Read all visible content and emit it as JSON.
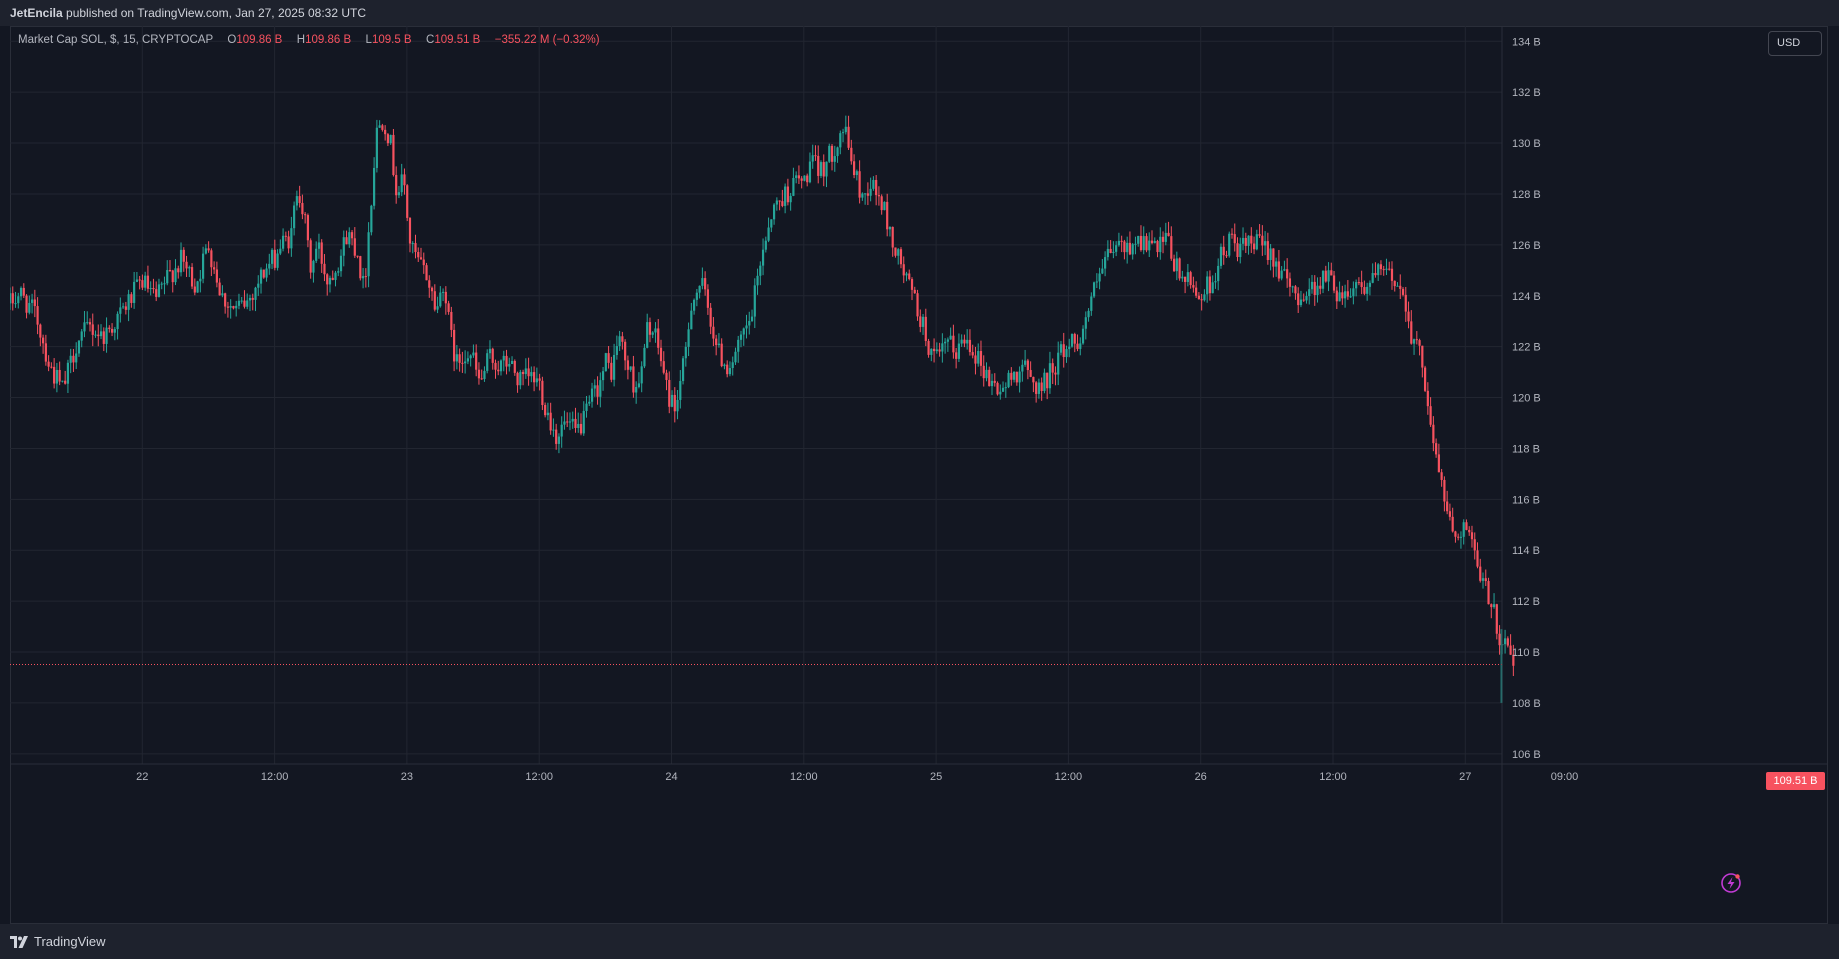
{
  "header": {
    "author": "JetEncila",
    "published_text": " published on TradingView.com, Jan 27, 2025 08:32 UTC"
  },
  "legend": {
    "symbol": "Market Cap SOL, $, 15, CRYPTOCAP",
    "o_label": "O",
    "o_value": "109.86 B",
    "h_label": "H",
    "h_value": "109.86 B",
    "l_label": "L",
    "l_value": "109.5 B",
    "c_label": "C",
    "c_value": "109.51 B",
    "change": "−355.22 M (−0.32%)"
  },
  "currency_button": "USD",
  "last_price_label": "109.51 B",
  "brand": {
    "name": "TradingView",
    "logo": "tradingview-logo-icon"
  },
  "alert": {
    "icon": "lightning-alert-icon"
  },
  "colors": {
    "background": "#131722",
    "grid": "#222631",
    "up": "#26a69a",
    "down": "#f7525f",
    "axis_text": "#b2b5be"
  },
  "chart_data": {
    "type": "candlestick",
    "interval": "15",
    "ylim": [
      105.6,
      134.6
    ],
    "yticks": [
      106,
      108,
      110,
      112,
      114,
      116,
      118,
      120,
      122,
      124,
      126,
      128,
      130,
      132,
      134
    ],
    "ytick_labels": [
      "106 B",
      "108 B",
      "110 B",
      "112 B",
      "114 B",
      "116 B",
      "118 B",
      "120 B",
      "122 B",
      "124 B",
      "126 B",
      "128 B",
      "130 B",
      "132 B",
      "134 B"
    ],
    "xlim": [
      -2.0,
      20.75
    ],
    "xticks": [
      {
        "label": "22",
        "t": 0
      },
      {
        "label": "12:00",
        "t": 2
      },
      {
        "label": "23",
        "t": 4
      },
      {
        "label": "12:00",
        "t": 6
      },
      {
        "label": "24",
        "t": 8
      },
      {
        "label": "12:00",
        "t": 10
      },
      {
        "label": "25",
        "t": 12
      },
      {
        "label": "12:00",
        "t": 14
      },
      {
        "label": "26",
        "t": 16
      },
      {
        "label": "12:00",
        "t": 18
      },
      {
        "label": "27",
        "t": 20
      },
      {
        "label": "09:00",
        "t": 21.5
      }
    ],
    "last_price": 109.51,
    "path": [
      [
        -2.0,
        123.7
      ],
      [
        -1.85,
        124.1
      ],
      [
        -1.6,
        123.2
      ],
      [
        -1.4,
        121.2
      ],
      [
        -1.2,
        120.3
      ],
      [
        -1.0,
        122.1
      ],
      [
        -0.8,
        122.8
      ],
      [
        -0.6,
        122.4
      ],
      [
        -0.4,
        123.0
      ],
      [
        -0.2,
        123.8
      ],
      [
        0.0,
        124.6
      ],
      [
        0.2,
        123.8
      ],
      [
        0.4,
        124.8
      ],
      [
        0.6,
        125.4
      ],
      [
        0.8,
        124.4
      ],
      [
        1.0,
        126.0
      ],
      [
        1.2,
        124.0
      ],
      [
        1.4,
        123.4
      ],
      [
        1.6,
        123.8
      ],
      [
        1.8,
        124.8
      ],
      [
        2.0,
        125.5
      ],
      [
        2.1,
        126.0
      ],
      [
        2.25,
        126.3
      ],
      [
        2.35,
        128.5
      ],
      [
        2.45,
        127.0
      ],
      [
        2.55,
        125.0
      ],
      [
        2.65,
        126.0
      ],
      [
        2.8,
        124.6
      ],
      [
        3.0,
        125.6
      ],
      [
        3.1,
        126.5
      ],
      [
        3.25,
        125.8
      ],
      [
        3.35,
        124.2
      ],
      [
        3.45,
        127.5
      ],
      [
        3.55,
        130.6
      ],
      [
        3.65,
        131.0
      ],
      [
        3.75,
        130.0
      ],
      [
        3.85,
        128.0
      ],
      [
        3.95,
        128.6
      ],
      [
        4.05,
        126.0
      ],
      [
        4.15,
        125.4
      ],
      [
        4.3,
        124.8
      ],
      [
        4.45,
        123.4
      ],
      [
        4.55,
        124.6
      ],
      [
        4.65,
        122.6
      ],
      [
        4.75,
        121.3
      ],
      [
        4.9,
        121.9
      ],
      [
        5.0,
        121.5
      ],
      [
        5.1,
        120.5
      ],
      [
        5.25,
        121.6
      ],
      [
        5.4,
        121.2
      ],
      [
        5.55,
        121.4
      ],
      [
        5.7,
        120.6
      ],
      [
        5.85,
        120.8
      ],
      [
        6.0,
        120.6
      ],
      [
        6.1,
        119.6
      ],
      [
        6.25,
        118.5
      ],
      [
        6.4,
        119.0
      ],
      [
        6.55,
        118.6
      ],
      [
        6.7,
        119.2
      ],
      [
        6.8,
        120.0
      ],
      [
        6.95,
        120.8
      ],
      [
        7.0,
        121.4
      ],
      [
        7.1,
        121.0
      ],
      [
        7.2,
        122.5
      ],
      [
        7.3,
        121.5
      ],
      [
        7.45,
        120.4
      ],
      [
        7.55,
        121.0
      ],
      [
        7.65,
        123.0
      ],
      [
        7.8,
        122.0
      ],
      [
        7.95,
        120.1
      ],
      [
        8.05,
        119.6
      ],
      [
        8.2,
        121.4
      ],
      [
        8.3,
        123.8
      ],
      [
        8.45,
        124.5
      ],
      [
        8.6,
        123.0
      ],
      [
        8.7,
        121.8
      ],
      [
        8.85,
        121.2
      ],
      [
        9.0,
        121.8
      ],
      [
        9.1,
        122.5
      ],
      [
        9.2,
        123.0
      ],
      [
        9.35,
        125.5
      ],
      [
        9.5,
        127.2
      ],
      [
        9.65,
        127.8
      ],
      [
        9.8,
        128.2
      ],
      [
        9.9,
        128.6
      ],
      [
        10.0,
        128.4
      ],
      [
        10.1,
        129.2
      ],
      [
        10.25,
        128.9
      ],
      [
        10.4,
        129.5
      ],
      [
        10.5,
        130.1
      ],
      [
        10.6,
        130.6
      ],
      [
        10.7,
        129.6
      ],
      [
        10.8,
        128.5
      ],
      [
        10.9,
        127.8
      ],
      [
        11.0,
        128.5
      ],
      [
        11.1,
        128.0
      ],
      [
        11.2,
        127.5
      ],
      [
        11.35,
        126.0
      ],
      [
        11.5,
        125.0
      ],
      [
        11.65,
        124.0
      ],
      [
        11.8,
        122.8
      ],
      [
        11.95,
        121.5
      ],
      [
        12.05,
        121.5
      ],
      [
        12.15,
        122.2
      ],
      [
        12.3,
        121.8
      ],
      [
        12.45,
        122.4
      ],
      [
        12.55,
        122.0
      ],
      [
        12.7,
        121.2
      ],
      [
        12.85,
        120.5
      ],
      [
        13.0,
        120.3
      ],
      [
        13.15,
        120.8
      ],
      [
        13.3,
        121.3
      ],
      [
        13.45,
        120.6
      ],
      [
        13.6,
        120.4
      ],
      [
        13.75,
        121.1
      ],
      [
        13.9,
        121.8
      ],
      [
        14.05,
        122.2
      ],
      [
        14.2,
        122.4
      ],
      [
        14.3,
        123.5
      ],
      [
        14.45,
        124.6
      ],
      [
        14.6,
        125.5
      ],
      [
        14.75,
        126.0
      ],
      [
        14.9,
        125.8
      ],
      [
        15.0,
        126.3
      ],
      [
        15.2,
        126.0
      ],
      [
        15.35,
        125.8
      ],
      [
        15.5,
        126.2
      ],
      [
        15.6,
        125.2
      ],
      [
        15.7,
        124.8
      ],
      [
        15.85,
        124.4
      ],
      [
        16.0,
        124.0
      ],
      [
        16.15,
        124.5
      ],
      [
        16.3,
        125.5
      ],
      [
        16.45,
        126.2
      ],
      [
        16.6,
        125.8
      ],
      [
        16.75,
        126.0
      ],
      [
        16.9,
        126.0
      ],
      [
        17.05,
        125.8
      ],
      [
        17.2,
        125.0
      ],
      [
        17.35,
        124.2
      ],
      [
        17.5,
        124.0
      ],
      [
        17.65,
        124.2
      ],
      [
        17.8,
        124.6
      ],
      [
        17.95,
        124.8
      ],
      [
        18.05,
        124.2
      ],
      [
        18.2,
        124.1
      ],
      [
        18.35,
        124.6
      ],
      [
        18.5,
        124.3
      ],
      [
        18.65,
        124.8
      ],
      [
        18.8,
        124.9
      ],
      [
        18.95,
        124.6
      ],
      [
        19.1,
        123.8
      ],
      [
        19.2,
        122.3
      ],
      [
        19.35,
        121.4
      ],
      [
        19.45,
        119.6
      ],
      [
        19.55,
        117.6
      ],
      [
        19.65,
        116.6
      ],
      [
        19.75,
        115.2
      ],
      [
        19.85,
        114.6
      ],
      [
        19.95,
        115.0
      ],
      [
        20.05,
        114.8
      ],
      [
        20.15,
        113.6
      ],
      [
        20.25,
        112.6
      ],
      [
        20.35,
        112.3
      ],
      [
        20.45,
        111.8
      ],
      [
        20.5,
        110.2
      ],
      [
        20.55,
        110.4
      ],
      [
        20.6,
        110.7
      ],
      [
        20.65,
        110.0
      ],
      [
        20.7,
        109.7
      ],
      [
        20.75,
        109.51
      ]
    ],
    "wick_events": [
      {
        "t": 20.55,
        "low": 108.0,
        "high": 110.9
      }
    ]
  }
}
